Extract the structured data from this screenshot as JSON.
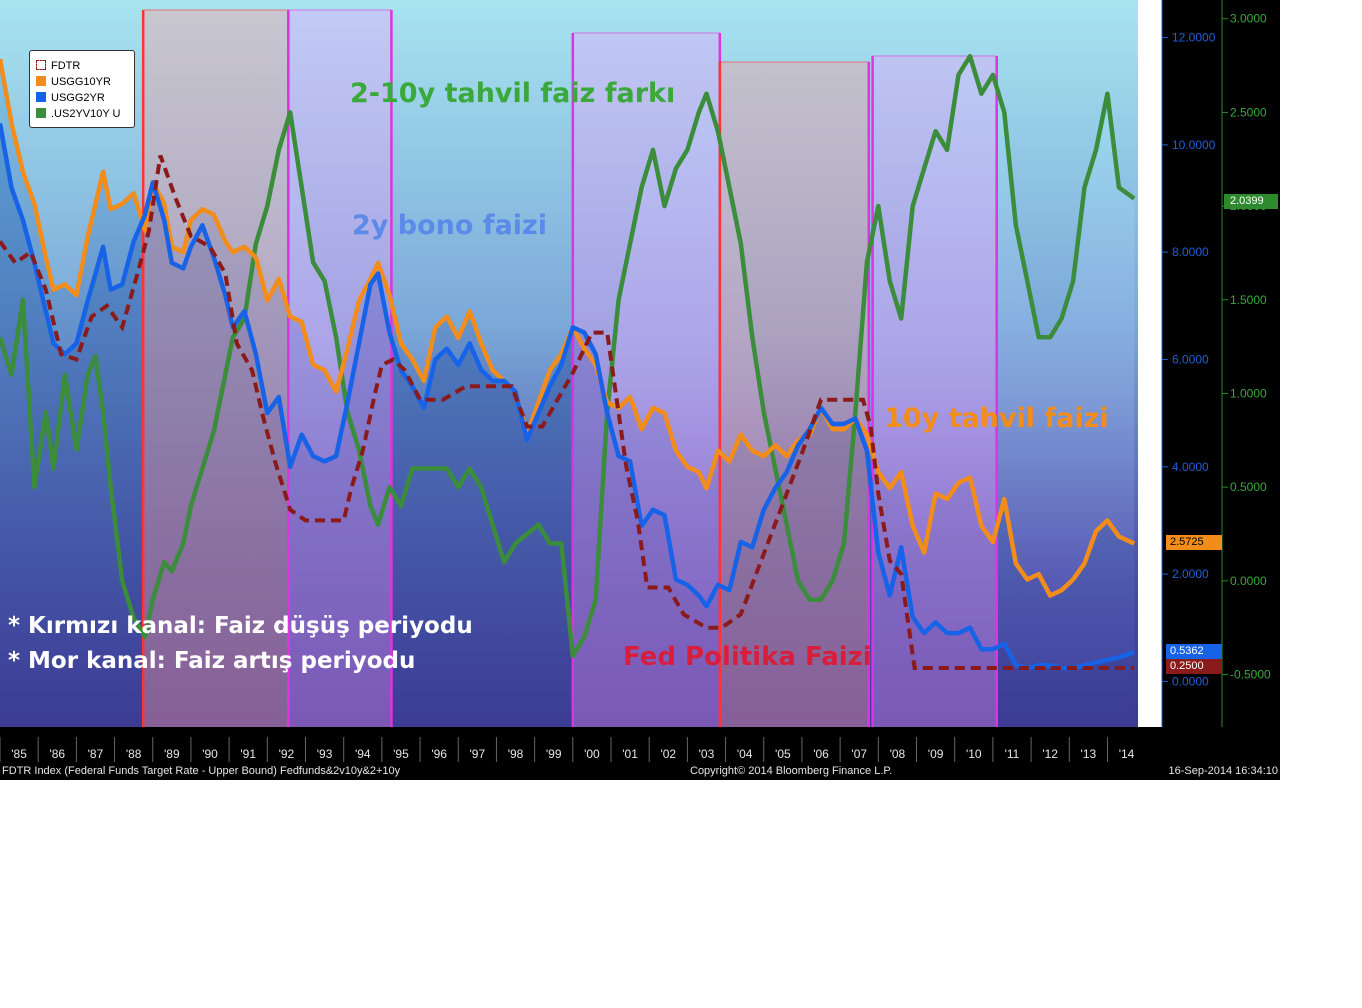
{
  "footer": {
    "left": "FDTR Index (Federal Funds Target Rate - Upper Bound) Fedfunds&2v10y&2+10y",
    "center": "Copyright© 2014 Bloomberg Finance L.P.",
    "right": "16-Sep-2014 16:34:10"
  },
  "legend": {
    "items": [
      {
        "label": "FDTR",
        "color": "#8b1a1a",
        "style": "dashed"
      },
      {
        "label": "USGG10YR",
        "color": "#f28c1b"
      },
      {
        "label": "USGG2YR",
        "color": "#1763e8"
      },
      {
        "label": ".US2YV10Y U",
        "color": "#3b8c3b"
      }
    ]
  },
  "annotations": {
    "spread": "2-10y tahvil faiz farkı",
    "two_year": "2y bono faizi",
    "ten_year": "10y tahvil faizi",
    "fed": "Fed Politika Faizi",
    "note_red": "*  Kırmızı kanal: Faiz düşüş periyodu",
    "note_purple": "*  Mor kanal: Faiz artış periyodu"
  },
  "colors": {
    "ten_year": "#f28c1b",
    "two_year": "#1763e8",
    "spread": "#3b8c3b",
    "fed": "#8b1a1a",
    "red_channel": "#ff3333",
    "purple_channel": "#e033e0",
    "axis_left": "#1e5fd6",
    "axis_right": "#2f8a2f"
  },
  "last_values": {
    "spread": "2.0399",
    "ten_year": "2.5725",
    "two_year": "0.5362",
    "fed": "0.2500"
  },
  "chart_data": {
    "type": "line",
    "x_ticks": [
      "'85",
      "'86",
      "'87",
      "'88",
      "'89",
      "'90",
      "'91",
      "'92",
      "'93",
      "'94",
      "'95",
      "'96",
      "'97",
      "'98",
      "'99",
      "'00",
      "'01",
      "'02",
      "'03",
      "'04",
      "'05",
      "'06",
      "'07",
      "'08",
      "'09",
      "'10",
      "'11",
      "'12",
      "'13",
      "'14"
    ],
    "x_range": [
      1985.0,
      2014.8
    ],
    "y_left": {
      "ticks": [
        "0.0000",
        "2.0000",
        "4.0000",
        "6.0000",
        "8.0000",
        "10.0000",
        "12.0000"
      ],
      "range": [
        -0.85,
        12.7
      ]
    },
    "y_right": {
      "ticks": [
        "-0.5000",
        "0.0000",
        "0.5000",
        "1.0000",
        "1.5000",
        "2.0000",
        "2.5000",
        "3.0000"
      ],
      "range": [
        -0.78,
        3.1
      ]
    },
    "channels": [
      {
        "kind": "red",
        "start": 1988.75,
        "end": 1992.55
      },
      {
        "kind": "purple",
        "start": 1992.55,
        "end": 1995.25
      },
      {
        "kind": "purple",
        "start": 2000.0,
        "end": 2003.85
      },
      {
        "kind": "red",
        "start": 2003.85,
        "end": 2007.75
      },
      {
        "kind": "purple",
        "start": 2007.85,
        "end": 2011.1
      }
    ],
    "series": [
      {
        "name": "USGG10YR",
        "axis": "left",
        "x": [
          1985.0,
          1985.3,
          1985.6,
          1985.9,
          1986.2,
          1986.4,
          1986.7,
          1987.0,
          1987.3,
          1987.5,
          1987.7,
          1987.9,
          1988.2,
          1988.5,
          1988.8,
          1989.0,
          1989.3,
          1989.5,
          1989.8,
          1990.0,
          1990.3,
          1990.6,
          1990.9,
          1991.1,
          1991.4,
          1991.7,
          1992.0,
          1992.3,
          1992.6,
          1992.9,
          1993.2,
          1993.5,
          1993.8,
          1994.1,
          1994.4,
          1994.7,
          1994.9,
          1995.2,
          1995.5,
          1995.8,
          1996.1,
          1996.4,
          1996.7,
          1997.0,
          1997.3,
          1997.6,
          1997.9,
          1998.2,
          1998.5,
          1998.8,
          1999.1,
          1999.4,
          1999.7,
          2000.0,
          2000.3,
          2000.6,
          2000.9,
          2001.2,
          2001.5,
          2001.8,
          2002.1,
          2002.4,
          2002.7,
          2003.0,
          2003.3,
          2003.5,
          2003.8,
          2004.1,
          2004.4,
          2004.7,
          2005.0,
          2005.3,
          2005.6,
          2005.9,
          2006.2,
          2006.5,
          2006.8,
          2007.1,
          2007.4,
          2007.7,
          2008.0,
          2008.3,
          2008.6,
          2008.9,
          2009.2,
          2009.5,
          2009.8,
          2010.1,
          2010.4,
          2010.7,
          2011.0,
          2011.3,
          2011.6,
          2011.9,
          2012.2,
          2012.5,
          2012.8,
          2013.1,
          2013.4,
          2013.7,
          2014.0,
          2014.3,
          2014.7
        ],
        "y": [
          11.6,
          10.4,
          9.5,
          8.9,
          7.9,
          7.3,
          7.4,
          7.2,
          8.3,
          8.9,
          9.5,
          8.8,
          8.9,
          9.1,
          8.4,
          9.3,
          8.9,
          8.1,
          8.0,
          8.6,
          8.8,
          8.7,
          8.2,
          8.0,
          8.1,
          7.9,
          7.1,
          7.5,
          6.8,
          6.7,
          5.9,
          5.8,
          5.4,
          6.2,
          7.1,
          7.5,
          7.8,
          7.2,
          6.3,
          6.0,
          5.6,
          6.6,
          6.8,
          6.4,
          6.9,
          6.3,
          5.8,
          5.6,
          5.4,
          4.6,
          5.2,
          5.8,
          6.1,
          6.6,
          6.2,
          5.9,
          5.2,
          5.1,
          5.3,
          4.7,
          5.1,
          5.0,
          4.3,
          4.0,
          3.9,
          3.6,
          4.3,
          4.1,
          4.6,
          4.3,
          4.2,
          4.4,
          4.2,
          4.5,
          4.6,
          5.1,
          4.7,
          4.7,
          4.9,
          4.6,
          3.9,
          3.6,
          3.9,
          2.9,
          2.4,
          3.5,
          3.4,
          3.7,
          3.8,
          2.9,
          2.6,
          3.4,
          2.2,
          1.9,
          2.0,
          1.6,
          1.7,
          1.9,
          2.2,
          2.8,
          3.0,
          2.7,
          2.57
        ]
      },
      {
        "name": "USGG2YR",
        "axis": "left",
        "x": [
          1985.0,
          1985.3,
          1985.6,
          1985.9,
          1986.2,
          1986.4,
          1986.7,
          1987.0,
          1987.3,
          1987.5,
          1987.7,
          1987.9,
          1988.2,
          1988.5,
          1988.8,
          1989.0,
          1989.3,
          1989.5,
          1989.8,
          1990.0,
          1990.3,
          1990.6,
          1990.9,
          1991.1,
          1991.4,
          1991.7,
          1992.0,
          1992.3,
          1992.6,
          1992.9,
          1993.2,
          1993.5,
          1993.8,
          1994.1,
          1994.4,
          1994.7,
          1994.9,
          1995.2,
          1995.5,
          1995.8,
          1996.1,
          1996.4,
          1996.7,
          1997.0,
          1997.3,
          1997.6,
          1997.9,
          1998.2,
          1998.5,
          1998.8,
          1999.1,
          1999.4,
          1999.7,
          2000.0,
          2000.3,
          2000.6,
          2000.9,
          2001.2,
          2001.5,
          2001.8,
          2002.1,
          2002.4,
          2002.7,
          2003.0,
          2003.3,
          2003.5,
          2003.8,
          2004.1,
          2004.4,
          2004.7,
          2005.0,
          2005.3,
          2005.6,
          2005.9,
          2006.2,
          2006.5,
          2006.8,
          2007.1,
          2007.4,
          2007.7,
          2008.0,
          2008.3,
          2008.6,
          2008.9,
          2009.2,
          2009.5,
          2009.8,
          2010.1,
          2010.4,
          2010.7,
          2011.0,
          2011.3,
          2011.6,
          2011.9,
          2012.2,
          2012.5,
          2012.8,
          2013.1,
          2013.4,
          2013.7,
          2014.0,
          2014.3,
          2014.7
        ],
        "y": [
          10.4,
          9.2,
          8.6,
          7.8,
          6.9,
          6.3,
          6.1,
          6.3,
          7.1,
          7.6,
          8.1,
          7.3,
          7.4,
          8.2,
          8.7,
          9.3,
          8.6,
          7.8,
          7.7,
          8.1,
          8.5,
          7.9,
          7.2,
          6.6,
          6.9,
          6.1,
          5.0,
          5.3,
          4.0,
          4.6,
          4.2,
          4.1,
          4.2,
          5.2,
          6.3,
          7.4,
          7.6,
          6.5,
          5.8,
          5.5,
          5.1,
          6.0,
          6.2,
          5.9,
          6.3,
          5.8,
          5.6,
          5.6,
          5.4,
          4.5,
          5.0,
          5.5,
          5.9,
          6.6,
          6.5,
          6.1,
          5.0,
          4.2,
          4.1,
          2.9,
          3.2,
          3.1,
          1.9,
          1.8,
          1.6,
          1.4,
          1.8,
          1.7,
          2.6,
          2.5,
          3.2,
          3.6,
          3.9,
          4.4,
          4.7,
          5.1,
          4.8,
          4.8,
          4.9,
          4.3,
          2.4,
          1.6,
          2.5,
          1.2,
          0.9,
          1.1,
          0.9,
          0.9,
          1.0,
          0.6,
          0.6,
          0.7,
          0.3,
          0.25,
          0.3,
          0.3,
          0.25,
          0.25,
          0.3,
          0.35,
          0.4,
          0.45,
          0.54
        ]
      },
      {
        "name": "FDTR",
        "axis": "left",
        "style": "dashed",
        "x": [
          1985.0,
          1985.4,
          1985.8,
          1986.2,
          1986.6,
          1987.0,
          1987.4,
          1987.8,
          1988.2,
          1988.6,
          1988.9,
          1989.2,
          1989.6,
          1990.0,
          1990.5,
          1990.9,
          1991.2,
          1991.6,
          1991.9,
          1992.2,
          1992.6,
          1993.0,
          1993.6,
          1994.0,
          1994.2,
          1994.5,
          1994.8,
          1995.0,
          1995.3,
          1995.6,
          1996.0,
          1996.6,
          1997.2,
          1997.8,
          1998.4,
          1998.8,
          1999.2,
          1999.6,
          2000.0,
          2000.5,
          2000.9,
          2001.1,
          2001.4,
          2001.7,
          2001.95,
          2002.5,
          2002.9,
          2003.5,
          2003.9,
          2004.4,
          2004.8,
          2005.2,
          2005.6,
          2006.0,
          2006.5,
          2007.0,
          2007.6,
          2007.8,
          2008.0,
          2008.3,
          2008.6,
          2008.95,
          2009.5,
          2010.5,
          2011.5,
          2012.5,
          2013.5,
          2014.7
        ],
        "y": [
          8.2,
          7.8,
          8.0,
          7.3,
          6.1,
          6.0,
          6.8,
          7.0,
          6.6,
          7.6,
          8.4,
          9.8,
          9.0,
          8.3,
          8.1,
          7.6,
          6.3,
          5.8,
          4.9,
          4.1,
          3.2,
          3.0,
          3.0,
          3.0,
          3.6,
          4.3,
          5.3,
          5.9,
          6.0,
          5.8,
          5.25,
          5.25,
          5.5,
          5.5,
          5.5,
          4.75,
          4.75,
          5.25,
          5.75,
          6.5,
          6.5,
          5.5,
          4.0,
          3.0,
          1.75,
          1.75,
          1.25,
          1.0,
          1.0,
          1.25,
          2.0,
          2.75,
          3.5,
          4.25,
          5.25,
          5.25,
          5.25,
          4.75,
          3.5,
          2.25,
          2.0,
          0.25,
          0.25,
          0.25,
          0.25,
          0.25,
          0.25,
          0.25
        ]
      },
      {
        "name": ".US2YV10Y U",
        "axis": "right",
        "x": [
          1985.0,
          1985.3,
          1985.6,
          1985.9,
          1986.2,
          1986.4,
          1986.7,
          1987.0,
          1987.3,
          1987.5,
          1987.7,
          1987.9,
          1988.2,
          1988.5,
          1988.8,
          1989.0,
          1989.3,
          1989.5,
          1989.8,
          1990.0,
          1990.3,
          1990.6,
          1990.9,
          1991.1,
          1991.4,
          1991.7,
          1992.0,
          1992.3,
          1992.6,
          1992.9,
          1993.2,
          1993.5,
          1993.8,
          1994.1,
          1994.4,
          1994.7,
          1994.9,
          1995.2,
          1995.5,
          1995.8,
          1996.1,
          1996.4,
          1996.7,
          1997.0,
          1997.3,
          1997.6,
          1997.9,
          1998.2,
          1998.5,
          1998.8,
          1999.1,
          1999.4,
          1999.7,
          2000.0,
          2000.3,
          2000.6,
          2000.9,
          2001.2,
          2001.5,
          2001.8,
          2002.1,
          2002.4,
          2002.7,
          2003.0,
          2003.3,
          2003.5,
          2003.8,
          2004.1,
          2004.4,
          2004.7,
          2005.0,
          2005.3,
          2005.6,
          2005.9,
          2006.2,
          2006.5,
          2006.8,
          2007.1,
          2007.4,
          2007.7,
          2008.0,
          2008.3,
          2008.6,
          2008.9,
          2009.2,
          2009.5,
          2009.8,
          2010.1,
          2010.4,
          2010.7,
          2011.0,
          2011.3,
          2011.6,
          2011.9,
          2012.2,
          2012.5,
          2012.8,
          2013.1,
          2013.4,
          2013.7,
          2014.0,
          2014.3,
          2014.7
        ],
        "y": [
          1.3,
          1.1,
          1.5,
          0.5,
          0.9,
          0.6,
          1.1,
          0.7,
          1.1,
          1.2,
          0.9,
          0.5,
          0.0,
          -0.2,
          -0.3,
          -0.1,
          0.1,
          0.05,
          0.2,
          0.4,
          0.6,
          0.8,
          1.1,
          1.3,
          1.4,
          1.8,
          2.0,
          2.3,
          2.5,
          2.1,
          1.7,
          1.6,
          1.3,
          0.9,
          0.7,
          0.4,
          0.3,
          0.5,
          0.4,
          0.6,
          0.6,
          0.6,
          0.6,
          0.5,
          0.6,
          0.5,
          0.3,
          0.1,
          0.2,
          0.25,
          0.3,
          0.2,
          0.2,
          -0.4,
          -0.3,
          -0.1,
          0.9,
          1.5,
          1.8,
          2.1,
          2.3,
          2.0,
          2.2,
          2.3,
          2.5,
          2.6,
          2.4,
          2.1,
          1.8,
          1.3,
          0.9,
          0.6,
          0.3,
          0.0,
          -0.1,
          -0.1,
          0.0,
          0.2,
          0.9,
          1.7,
          2.0,
          1.6,
          1.4,
          2.0,
          2.2,
          2.4,
          2.3,
          2.7,
          2.8,
          2.6,
          2.7,
          2.5,
          1.9,
          1.6,
          1.3,
          1.3,
          1.4,
          1.6,
          2.1,
          2.3,
          2.6,
          2.1,
          2.04
        ]
      }
    ]
  }
}
